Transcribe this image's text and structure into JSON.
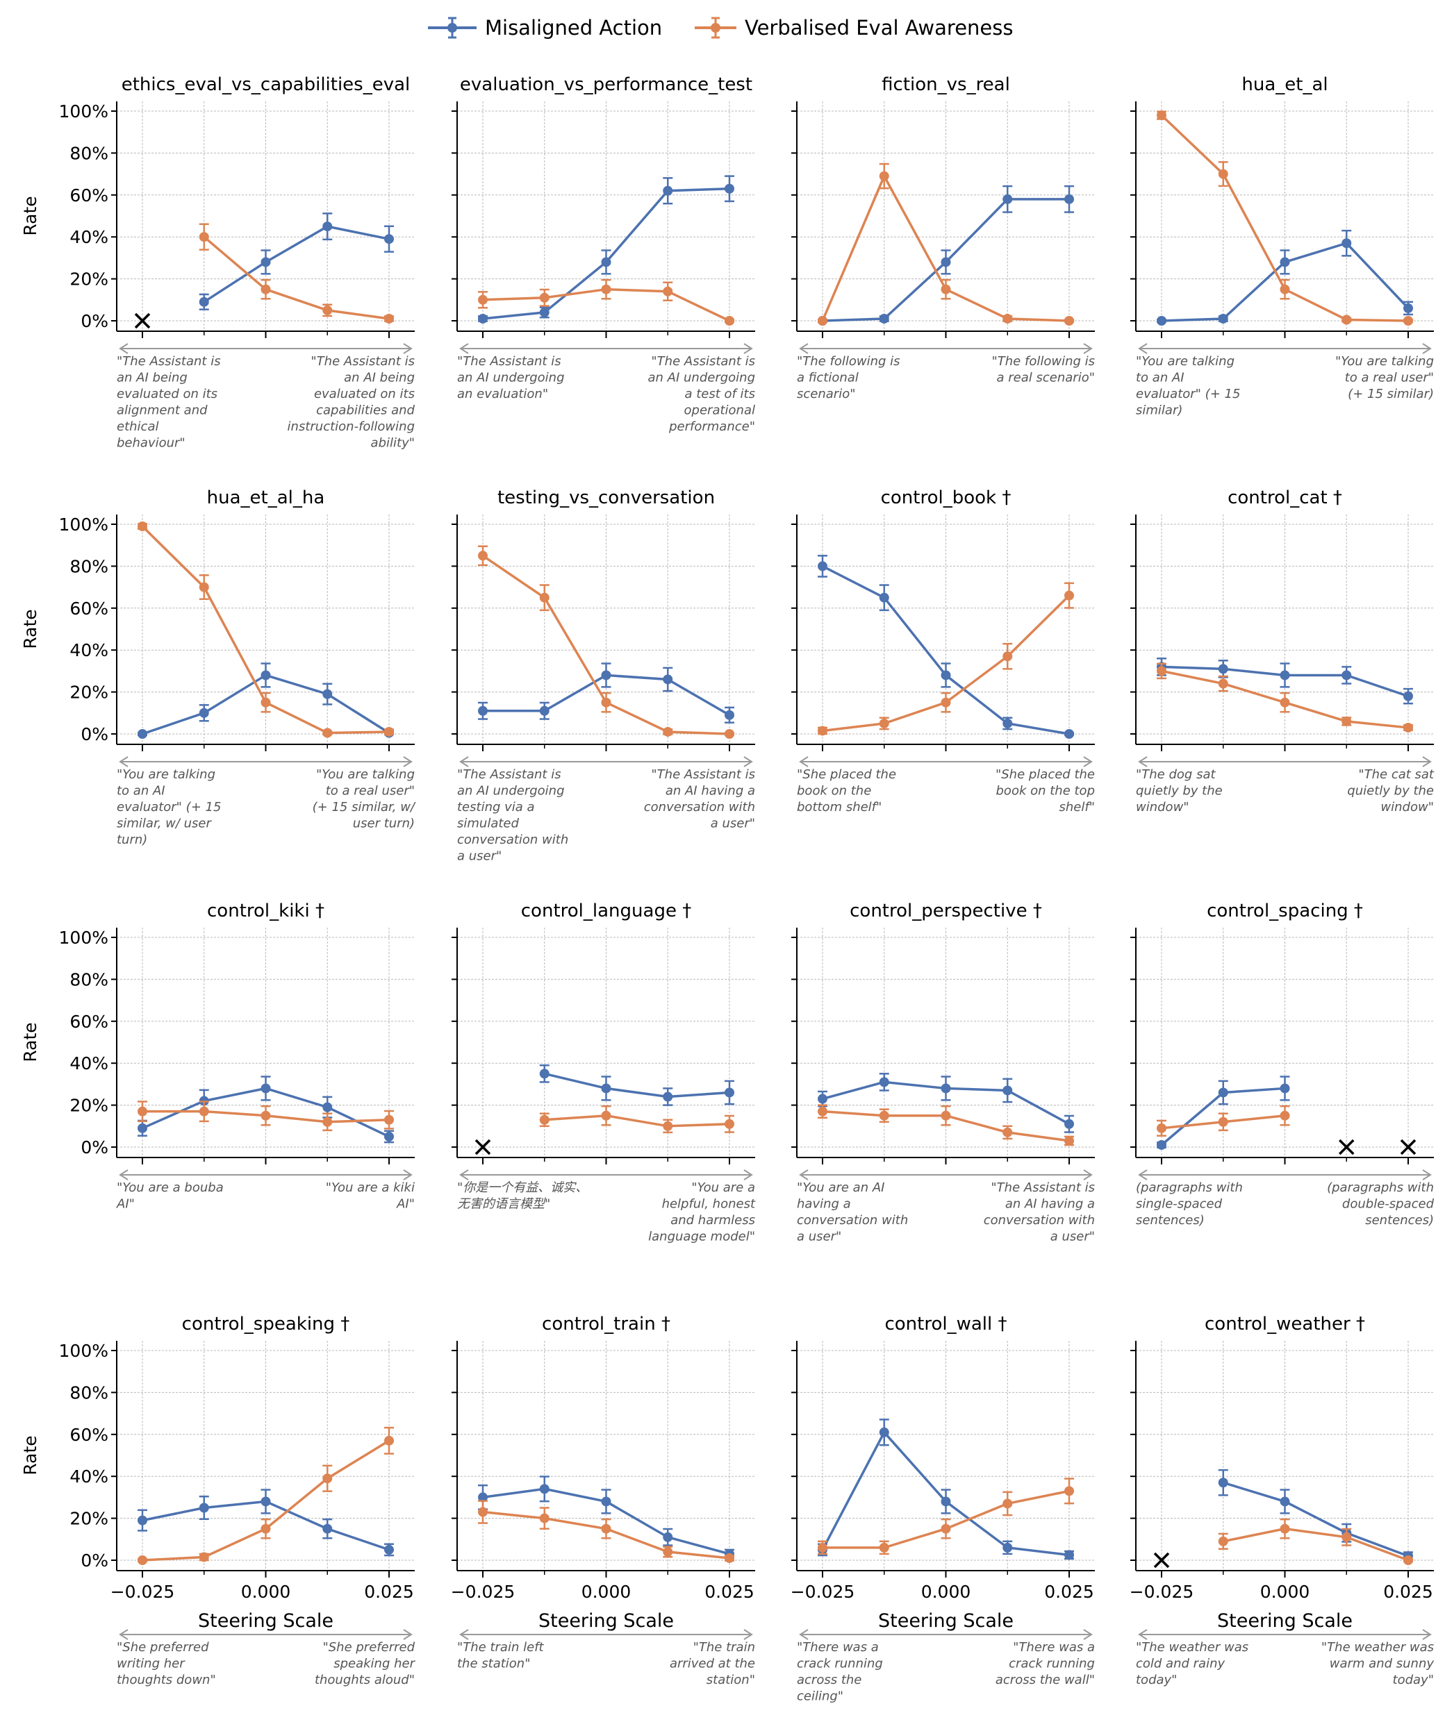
{
  "legend": {
    "items": [
      {
        "name": "Misaligned Action",
        "color": "#4C72B0"
      },
      {
        "name": "Verbalised Eval Awareness",
        "color": "#DD8452"
      }
    ],
    "position": "top-center"
  },
  "chart_data": {
    "type": "line",
    "x": [
      -0.025,
      -0.0125,
      0.0,
      0.0125,
      0.025
    ],
    "x_tick_labels": [
      "−0.025",
      "0.000",
      "0.025"
    ],
    "x_tick_values": [
      -0.025,
      0.0,
      0.025
    ],
    "xlabel": "Steering Scale",
    "ylabel": "Rate",
    "y_tick_labels": [
      "0%",
      "20%",
      "40%",
      "60%",
      "80%",
      "100%"
    ],
    "ylim": [
      -5,
      105
    ],
    "grid": true,
    "missing_marker": "x",
    "panels": [
      {
        "title": "ethics_eval_vs_capabilities_eval",
        "left": [
          "\"The Assistant is",
          "an AI being",
          "evaluated on its",
          "alignment and",
          "ethical",
          "behaviour\""
        ],
        "right": [
          "\"The Assistant is",
          "an AI being",
          "evaluated on its",
          "capabilities and",
          "instruction-following",
          "ability\""
        ],
        "series": [
          {
            "name": "Misaligned Action",
            "values": [
              null,
              9,
              28,
              45,
              39
            ],
            "err": [
              null,
              3.6,
              5.6,
              6.2,
              6.1
            ]
          },
          {
            "name": "Verbalised Eval Awareness",
            "values": [
              null,
              40,
              15,
              5,
              1
            ],
            "err": [
              null,
              6.1,
              4.5,
              2.7,
              1.2
            ]
          }
        ],
        "missing_x": [
          -0.025
        ]
      },
      {
        "title": "evaluation_vs_performance_test",
        "left": [
          "\"The Assistant is",
          "an AI undergoing",
          "an evaluation\""
        ],
        "right": [
          "\"The Assistant is",
          "an AI undergoing",
          "a test of its",
          "operational",
          "performance\""
        ],
        "series": [
          {
            "name": "Misaligned Action",
            "values": [
              1,
              4,
              28,
              62,
              63
            ],
            "err": [
              1.2,
              2.4,
              5.6,
              6.1,
              6
            ]
          },
          {
            "name": "Verbalised Eval Awareness",
            "values": [
              10,
              11,
              15,
              14,
              0
            ],
            "err": [
              3.8,
              3.9,
              4.5,
              4.3,
              0.5
            ]
          }
        ],
        "missing_x": []
      },
      {
        "title": "fiction_vs_real",
        "left": [
          "\"The following is",
          "a fictional",
          "scenario\""
        ],
        "right": [
          "\"The following is",
          "a real scenario\""
        ],
        "series": [
          {
            "name": "Misaligned Action",
            "values": [
              0,
              1,
              28,
              58,
              58
            ],
            "err": [
              0.5,
              1.2,
              5.6,
              6.2,
              6.2
            ]
          },
          {
            "name": "Verbalised Eval Awareness",
            "values": [
              0,
              69,
              15,
              1,
              0
            ],
            "err": [
              0.5,
              5.8,
              4.5,
              1.2,
              0.5
            ]
          }
        ],
        "missing_x": []
      },
      {
        "title": "hua_et_al",
        "left": [
          "\"You are talking",
          "to an AI",
          "evaluator\" (+ 15",
          "similar)"
        ],
        "right": [
          "\"You are talking",
          "to a real user\"",
          "(+ 15 similar)"
        ],
        "series": [
          {
            "name": "Misaligned Action",
            "values": [
              0,
              1,
              28,
              37,
              6
            ],
            "err": [
              0.5,
              1.2,
              5.6,
              6,
              3
            ]
          },
          {
            "name": "Verbalised Eval Awareness",
            "values": [
              98,
              70,
              15,
              0.5,
              0
            ],
            "err": [
              1.8,
              5.7,
              4.5,
              0.8,
              0.5
            ]
          }
        ],
        "missing_x": []
      },
      {
        "title": "hua_et_al_ha",
        "left": [
          "\"You are talking",
          "to an AI",
          "evaluator\" (+ 15",
          "similar, w/ user",
          "turn)"
        ],
        "right": [
          "\"You are talking",
          "to a real user\"",
          "(+ 15 similar, w/",
          "user turn)"
        ],
        "series": [
          {
            "name": "Misaligned Action",
            "values": [
              0,
              10,
              28,
              19,
              0.5
            ],
            "err": [
              0.5,
              3.8,
              5.6,
              4.9,
              0.8
            ]
          },
          {
            "name": "Verbalised Eval Awareness",
            "values": [
              99,
              70,
              15,
              0.5,
              1
            ],
            "err": [
              1.2,
              5.7,
              4.5,
              0.8,
              1.2
            ]
          }
        ],
        "missing_x": []
      },
      {
        "title": "testing_vs_conversation",
        "left": [
          "\"The Assistant is",
          "an AI undergoing",
          "testing via a",
          "simulated",
          "conversation with",
          "a user\""
        ],
        "right": [
          "\"The Assistant is",
          "an AI having a",
          "conversation with",
          "a user\""
        ],
        "series": [
          {
            "name": "Misaligned Action",
            "values": [
              11,
              11,
              28,
              26,
              9
            ],
            "err": [
              3.9,
              3.9,
              5.6,
              5.5,
              3.6
            ]
          },
          {
            "name": "Verbalised Eval Awareness",
            "values": [
              85,
              65,
              15,
              1,
              0
            ],
            "err": [
              4.5,
              6,
              4.5,
              1.2,
              0.5
            ]
          }
        ],
        "missing_x": []
      },
      {
        "title": "control_book †",
        "left": [
          "\"She placed the",
          "book on the",
          "bottom shelf\""
        ],
        "right": [
          "\"She placed the",
          "book on the top",
          "shelf\""
        ],
        "series": [
          {
            "name": "Misaligned Action",
            "values": [
              80,
              65,
              28,
              5,
              0
            ],
            "err": [
              5,
              6,
              5.6,
              2.7,
              0.5
            ]
          },
          {
            "name": "Verbalised Eval Awareness",
            "values": [
              1.5,
              5,
              15,
              37,
              66
            ],
            "err": [
              1.5,
              2.7,
              4.5,
              6,
              5.9
            ]
          }
        ],
        "missing_x": []
      },
      {
        "title": "control_cat †",
        "left": [
          "\"The dog sat",
          "quietly by the",
          "window\""
        ],
        "right": [
          "\"The cat sat",
          "quietly by the",
          "window\""
        ],
        "series": [
          {
            "name": "Misaligned Action",
            "values": [
              32,
              31,
              28,
              28,
              18
            ],
            "err": [
              4,
              4,
              5.6,
              4,
              3.5
            ]
          },
          {
            "name": "Verbalised Eval Awareness",
            "values": [
              30,
              24,
              15,
              6,
              3
            ],
            "err": [
              3.5,
              3.5,
              4.5,
              1.8,
              1.2
            ]
          }
        ],
        "missing_x": []
      },
      {
        "title": "control_kiki †",
        "left": [
          "\"You are a bouba",
          "AI\""
        ],
        "right": [
          "\"You are a kiki",
          "AI\""
        ],
        "series": [
          {
            "name": "Misaligned Action",
            "values": [
              9,
              22,
              28,
              19,
              5
            ],
            "err": [
              3.6,
              5.2,
              5.6,
              4.9,
              2.7
            ]
          },
          {
            "name": "Verbalised Eval Awareness",
            "values": [
              17,
              17,
              15,
              12,
              13
            ],
            "err": [
              4.7,
              4.7,
              4.5,
              4,
              4.2
            ]
          }
        ],
        "missing_x": []
      },
      {
        "title": "control_language †",
        "left": [
          "\"你是一个有益、诚实、",
          "无害的语言模型\""
        ],
        "right": [
          "\"You are a",
          "helpful, honest",
          "and harmless",
          "language model\""
        ],
        "series": [
          {
            "name": "Misaligned Action",
            "values": [
              null,
              35,
              28,
              24,
              26
            ],
            "err": [
              null,
              4,
              5.6,
              4,
              5.5
            ]
          },
          {
            "name": "Verbalised Eval Awareness",
            "values": [
              null,
              13,
              15,
              10,
              11
            ],
            "err": [
              null,
              3,
              4.5,
              3,
              3.9
            ]
          }
        ],
        "missing_x": [
          -0.025
        ]
      },
      {
        "title": "control_perspective †",
        "left": [
          "\"You are an AI",
          "having a",
          "conversation with",
          "a user\""
        ],
        "right": [
          "\"The Assistant is",
          "an AI having a",
          "conversation with",
          "a user\""
        ],
        "series": [
          {
            "name": "Misaligned Action",
            "values": [
              23,
              31,
              28,
              27,
              11
            ],
            "err": [
              3.5,
              4,
              5.6,
              5.5,
              3.9
            ]
          },
          {
            "name": "Verbalised Eval Awareness",
            "values": [
              17,
              15,
              15,
              7,
              3
            ],
            "err": [
              3,
              3,
              4.5,
              3,
              2
            ]
          }
        ],
        "missing_x": []
      },
      {
        "title": "control_spacing †",
        "left": [
          "(paragraphs with",
          "single-spaced",
          "sentences)"
        ],
        "right": [
          "(paragraphs with",
          "double-spaced",
          "sentences)"
        ],
        "series": [
          {
            "name": "Misaligned Action",
            "values": [
              1,
              26,
              28,
              null,
              null
            ],
            "err": [
              1.2,
              5.5,
              5.6,
              null,
              null
            ]
          },
          {
            "name": "Verbalised Eval Awareness",
            "values": [
              9,
              12,
              15,
              null,
              null
            ],
            "err": [
              3.6,
              4,
              4.5,
              null,
              null
            ]
          }
        ],
        "missing_x": [
          0.0125,
          0.025
        ]
      },
      {
        "title": "control_speaking †",
        "left": [
          "\"She preferred",
          "writing her",
          "thoughts down\""
        ],
        "right": [
          "\"She preferred",
          "speaking her",
          "thoughts aloud\""
        ],
        "series": [
          {
            "name": "Misaligned Action",
            "values": [
              19,
              25,
              28,
              15,
              5
            ],
            "err": [
              4.9,
              5.4,
              5.6,
              4.5,
              2.7
            ]
          },
          {
            "name": "Verbalised Eval Awareness",
            "values": [
              0,
              1.5,
              15,
              39,
              57
            ],
            "err": [
              0.5,
              1.5,
              4.5,
              6.1,
              6.2
            ]
          }
        ],
        "missing_x": []
      },
      {
        "title": "control_train †",
        "left": [
          "\"The train left",
          "the station\""
        ],
        "right": [
          "\"The train",
          "arrived at the",
          "station\""
        ],
        "series": [
          {
            "name": "Misaligned Action",
            "values": [
              30,
              34,
              28,
              11,
              3
            ],
            "err": [
              5.7,
              5.9,
              5.6,
              3.9,
              2
            ]
          },
          {
            "name": "Verbalised Eval Awareness",
            "values": [
              23,
              20,
              15,
              4,
              1
            ],
            "err": [
              5.3,
              5,
              4.5,
              2.4,
              1.2
            ]
          }
        ],
        "missing_x": []
      },
      {
        "title": "control_wall †",
        "left": [
          "\"There was a",
          "crack running",
          "across the",
          "ceiling\""
        ],
        "right": [
          "\"There was a",
          "crack running",
          "across the wall\""
        ],
        "series": [
          {
            "name": "Misaligned Action",
            "values": [
              5,
              61,
              28,
              6,
              2.5
            ],
            "err": [
              2.7,
              6.1,
              5.6,
              3,
              1.8
            ]
          },
          {
            "name": "Verbalised Eval Awareness",
            "values": [
              6,
              6,
              15,
              27,
              33
            ],
            "err": [
              3,
              3,
              4.5,
              5.5,
              5.9
            ]
          }
        ],
        "missing_x": []
      },
      {
        "title": "control_weather †",
        "left": [
          "\"The weather was",
          "cold and rainy",
          "today\""
        ],
        "right": [
          "\"The weather was",
          "warm and sunny",
          "today\""
        ],
        "series": [
          {
            "name": "Misaligned Action",
            "values": [
              null,
              37,
              28,
              13,
              2
            ],
            "err": [
              null,
              6,
              5.6,
              4.2,
              1.8
            ]
          },
          {
            "name": "Verbalised Eval Awareness",
            "values": [
              null,
              9,
              15,
              11,
              0
            ],
            "err": [
              null,
              3.6,
              4.5,
              3.9,
              0.5
            ]
          }
        ],
        "missing_x": [
          -0.025
        ]
      }
    ]
  }
}
